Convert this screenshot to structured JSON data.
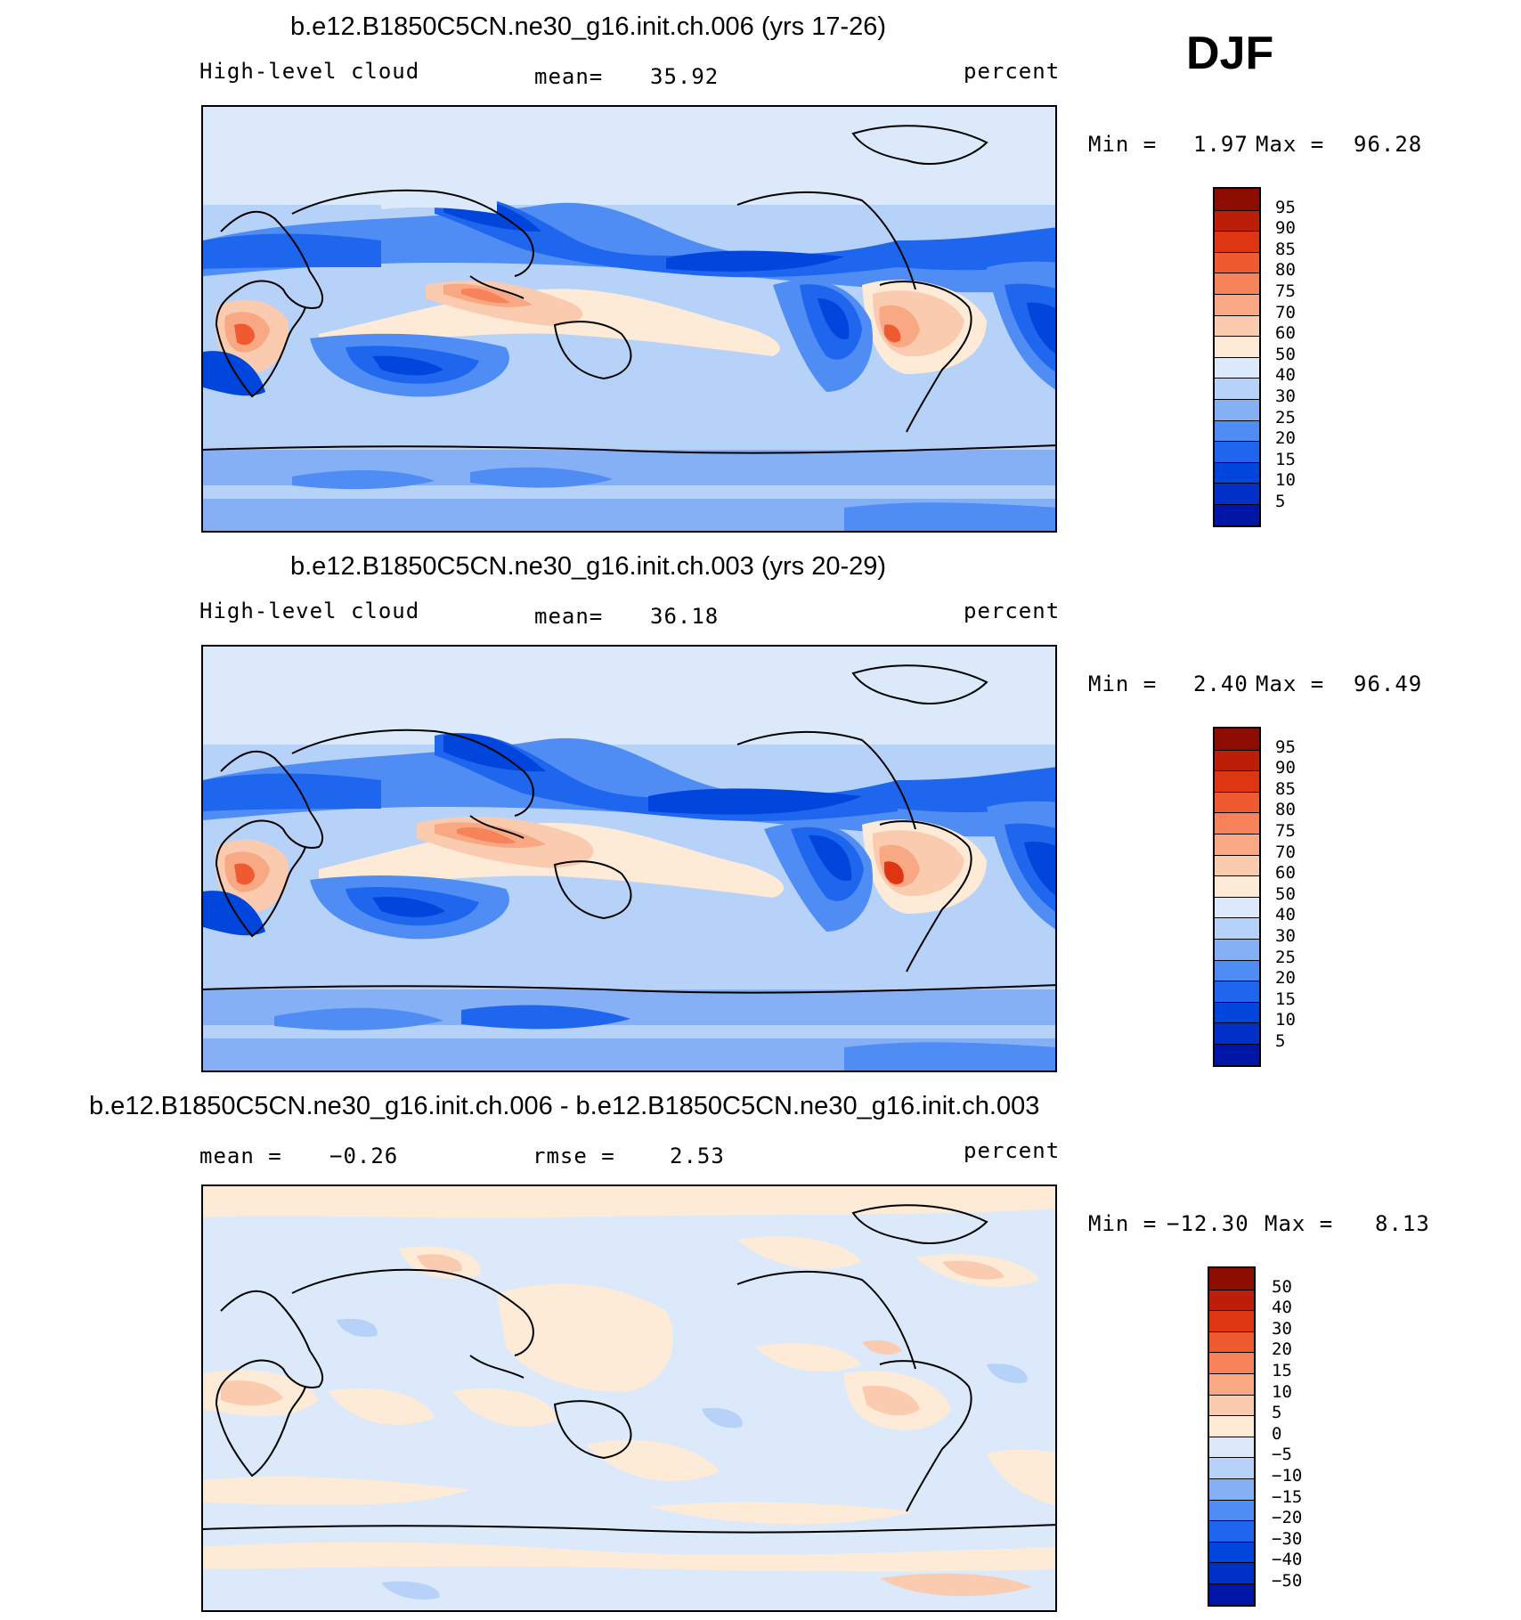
{
  "season": "DJF",
  "colors": {
    "abs_scale": [
      "#000080",
      "#0016a8",
      "#0030c8",
      "#0046dc",
      "#1e66ee",
      "#4f8df4",
      "#86b0f6",
      "#b7d2f8",
      "#dbe9fb",
      "#fdebd8",
      "#fbcbb0",
      "#f9a884",
      "#f6835a",
      "#ef5a30",
      "#de3612",
      "#bd1e08",
      "#8c0c00"
    ],
    "diff_scale": [
      "#000080",
      "#0016a8",
      "#0030c8",
      "#0046dc",
      "#1e66ee",
      "#4f8df4",
      "#86b0f6",
      "#b7d2f8",
      "#dbe9fb",
      "#fdebd8",
      "#fbcbb0",
      "#f9a884",
      "#f6835a",
      "#ef5a30",
      "#de3612",
      "#bd1e08",
      "#8c0c00"
    ]
  },
  "panels": [
    {
      "id": "case",
      "title": "b.e12.B1850C5CN.ne30_g16.init.ch.006 (yrs 17-26)",
      "left_label": "High-level cloud",
      "mean_label": "mean=",
      "mean_value": "35.92",
      "units": "percent",
      "min_label": "Min =",
      "min_value": "1.97",
      "max_label": "Max =",
      "max_value": "96.28",
      "levels": [
        "95",
        "90",
        "85",
        "80",
        "75",
        "70",
        "60",
        "50",
        "40",
        "30",
        "25",
        "20",
        "15",
        "10",
        "5"
      ]
    },
    {
      "id": "control",
      "title": "b.e12.B1850C5CN.ne30_g16.init.ch.003 (yrs 20-29)",
      "left_label": "High-level cloud",
      "mean_label": "mean=",
      "mean_value": "36.18",
      "units": "percent",
      "min_label": "Min =",
      "min_value": "2.40",
      "max_label": "Max =",
      "max_value": "96.49",
      "levels": [
        "95",
        "90",
        "85",
        "80",
        "75",
        "70",
        "60",
        "50",
        "40",
        "30",
        "25",
        "20",
        "15",
        "10",
        "5"
      ]
    },
    {
      "id": "difference",
      "title": "b.e12.B1850C5CN.ne30_g16.init.ch.006 - b.e12.B1850C5CN.ne30_g16.init.ch.003",
      "mean_label": "mean =",
      "mean_value": "−0.26",
      "rmse_label": "rmse =",
      "rmse_value": "2.53",
      "units": "percent",
      "min_label": "Min =",
      "min_value": "−12.30",
      "max_label": "Max =",
      "max_value": "8.13",
      "levels": [
        "50",
        "40",
        "30",
        "20",
        "15",
        "10",
        "5",
        "0",
        "−5",
        "−10",
        "−15",
        "−20",
        "−30",
        "−40",
        "−50"
      ]
    }
  ]
}
